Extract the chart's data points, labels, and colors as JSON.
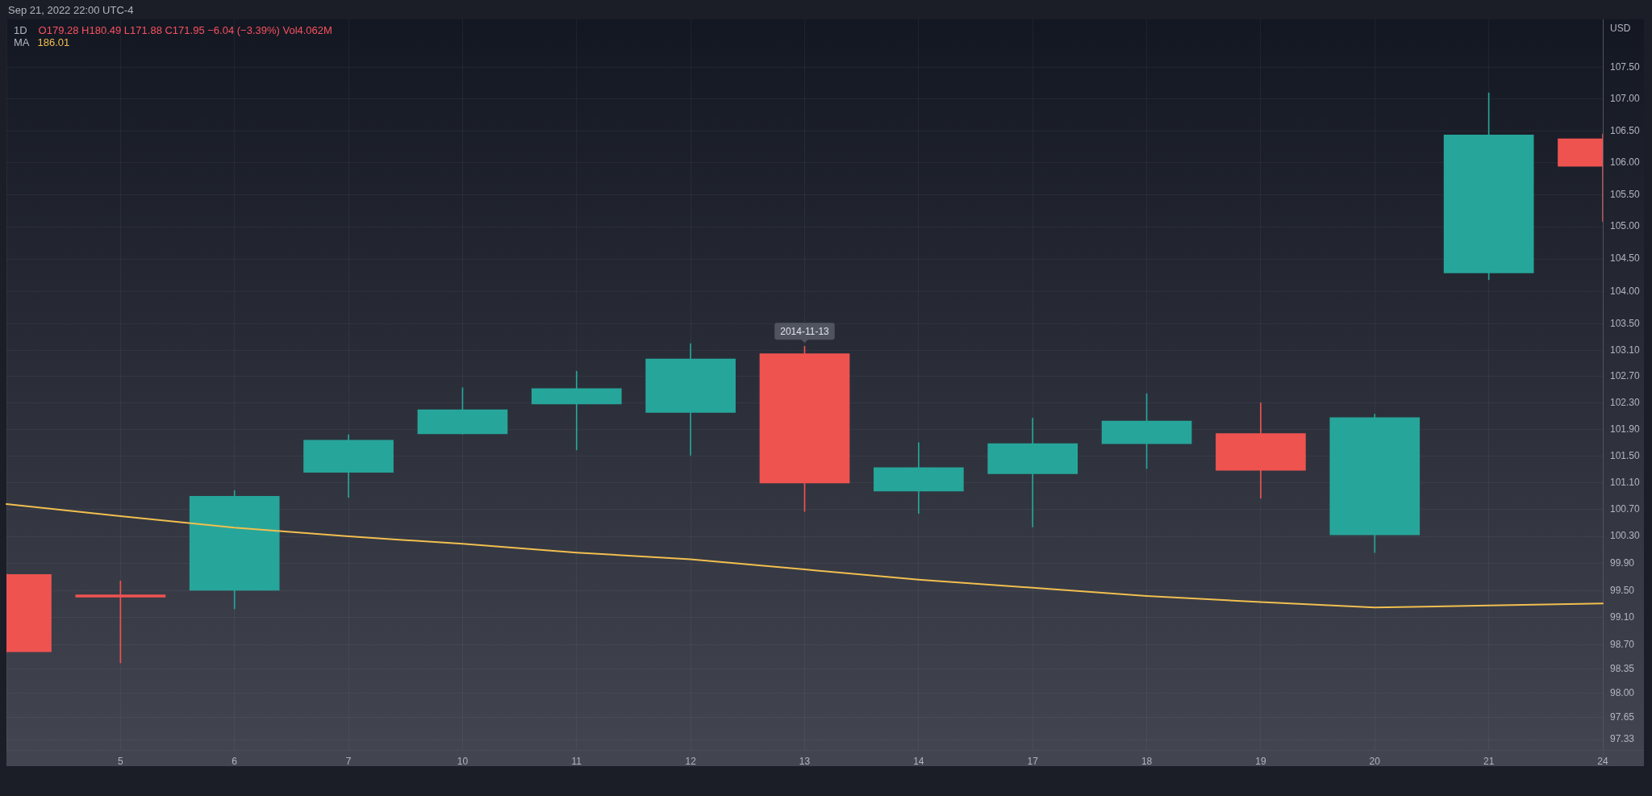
{
  "chart_data": {
    "type": "candlestick",
    "title": "1D",
    "subtitle": "O179.28 H180.49 L171.88 C171.95 −6.04 (−3.39%) Vol4.062M",
    "ylabel": "USD",
    "categories": [
      null,
      "5",
      "6",
      "7",
      "10",
      "11",
      "12",
      "13",
      "14",
      "17",
      "18",
      "19",
      "20",
      "21",
      "24"
    ],
    "ohlc": [
      [
        99.74,
        99.74,
        98.6,
        98.6
      ],
      [
        99.44,
        99.64,
        98.44,
        99.4
      ],
      [
        99.5,
        100.98,
        99.23,
        100.9
      ],
      [
        101.25,
        101.82,
        100.88,
        101.74
      ],
      [
        101.83,
        102.53,
        101.83,
        102.2
      ],
      [
        102.28,
        102.78,
        101.59,
        102.52
      ],
      [
        102.15,
        103.2,
        101.51,
        102.97
      ],
      [
        103.05,
        103.16,
        100.67,
        101.09
      ],
      [
        100.97,
        101.7,
        100.64,
        101.33
      ],
      [
        101.23,
        102.07,
        100.44,
        101.69
      ],
      [
        101.68,
        102.44,
        101.31,
        102.03
      ],
      [
        101.84,
        102.3,
        100.87,
        101.28
      ],
      [
        100.32,
        102.13,
        100.06,
        102.08
      ],
      [
        104.28,
        107.1,
        104.18,
        106.44
      ],
      [
        106.38,
        106.45,
        105.08,
        105.94
      ]
    ],
    "colors": [
      "#ef5350",
      "#ef5350",
      "#26a69a",
      "#26a69a",
      "#26a69a",
      "#26a69a",
      "#26a69a",
      "#ef5350",
      "#26a69a",
      "#26a69a",
      "#26a69a",
      "#ef5350",
      "#26a69a",
      "#26a69a",
      "#ef5350"
    ],
    "series": [
      {
        "name": "MA",
        "type": "line",
        "color": "#f2bf4f",
        "values": [
          100.78,
          100.6,
          100.43,
          100.3,
          100.19,
          100.06,
          99.96,
          99.81,
          99.66,
          99.54,
          99.42,
          99.33,
          99.25,
          99.28,
          99.31
        ]
      }
    ],
    "ylim": [
      97.18,
      108.27
    ],
    "yticks": [
      {
        "value": 107.5,
        "label": "107.50"
      },
      {
        "value": 107,
        "label": "107.00"
      },
      {
        "value": 106.5,
        "label": "106.50"
      },
      {
        "value": 106,
        "label": "106.00"
      },
      {
        "value": 105.5,
        "label": "105.50"
      },
      {
        "value": 105,
        "label": "105.00"
      },
      {
        "value": 104.5,
        "label": "104.50"
      },
      {
        "value": 104,
        "label": "104.00"
      },
      {
        "value": 103.5,
        "label": "103.50"
      },
      {
        "value": 103.1,
        "label": "103.10"
      },
      {
        "value": 102.7,
        "label": "102.70"
      },
      {
        "value": 102.3,
        "label": "102.30"
      },
      {
        "value": 101.9,
        "label": "101.90"
      },
      {
        "value": 101.5,
        "label": "101.50"
      },
      {
        "value": 101.1,
        "label": "101.10"
      },
      {
        "value": 100.7,
        "label": "100.70"
      },
      {
        "value": 100.3,
        "label": "100.30"
      },
      {
        "value": 99.9,
        "label": "99.90"
      },
      {
        "value": 99.5,
        "label": "99.50"
      },
      {
        "value": 99.1,
        "label": "99.10"
      },
      {
        "value": 98.7,
        "label": "98.70"
      },
      98.35,
      {
        "value": 98,
        "label": "98.00"
      },
      97.65,
      97.33
    ],
    "log": true,
    "grid": true,
    "legend": "top left",
    "annotations": [
      "Sep 21, 2022 22:00 UTC-4",
      "186.01",
      {
        "text": "2014-11-13",
        "x": "13",
        "y": 103.16
      }
    ]
  }
}
